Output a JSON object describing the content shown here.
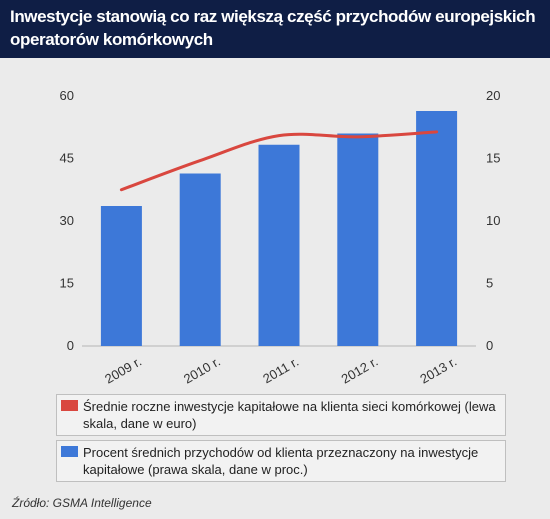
{
  "title": "Inwestycje stanowią co raz większą część przychodów europejskich operatorów komórkowych",
  "source": "Źródło: GSMA Intelligence",
  "colors": {
    "bar": "#3d78d8",
    "line": "#d9473f",
    "header": "#0f1e45",
    "background": "#ebebeb"
  },
  "chart_data": {
    "type": "bar+line",
    "categories": [
      "2009 r.",
      "2010 r.",
      "2011 r.",
      "2012 r.",
      "2013 r."
    ],
    "series": [
      {
        "name": "Średnie roczne inwestycje kapitałowe na klienta sieci komórkowej (lewa skala, dane w euro)",
        "type": "line",
        "axis": "left",
        "values": [
          37.5,
          44.5,
          50.5,
          50.2,
          51.4
        ]
      },
      {
        "name": "Procent średnich przychodów od klienta przeznaczony na inwestycje kapitałowe (prawa skala, dane w proc.)",
        "type": "bar",
        "axis": "right",
        "values": [
          11.2,
          13.8,
          16.1,
          17.0,
          18.8
        ]
      }
    ],
    "left_axis": {
      "ylim": [
        0,
        60
      ],
      "ticks": [
        "0",
        "15",
        "30",
        "45",
        "60"
      ]
    },
    "right_axis": {
      "ylim": [
        0,
        20
      ],
      "ticks": [
        "0",
        "5",
        "10",
        "15",
        "20"
      ]
    },
    "grid": false,
    "legend_placement": "bottom"
  }
}
